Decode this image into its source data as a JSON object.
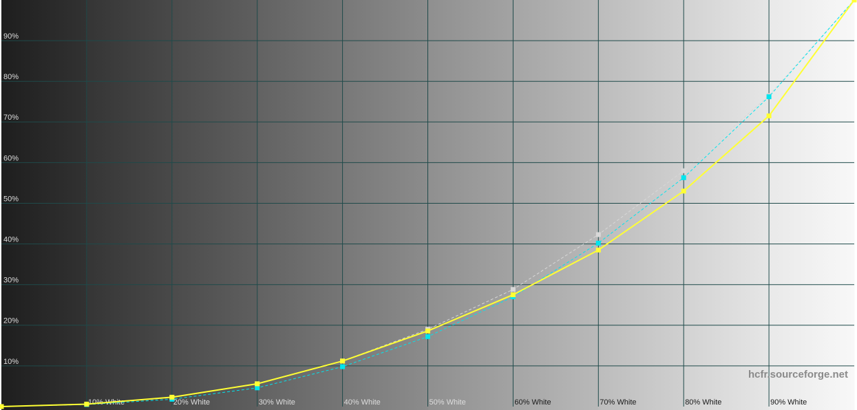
{
  "chart_data": {
    "type": "line",
    "x": [
      0,
      10,
      20,
      30,
      40,
      50,
      60,
      70,
      80,
      90,
      100
    ],
    "series": [
      {
        "color": "#d8d8d8",
        "dashed": true,
        "values": [
          0,
          0.6,
          2.2,
          5.6,
          11.2,
          19.0,
          28.8,
          42.3,
          58.0,
          76.5,
          100
        ]
      },
      {
        "color": "#00e5ee",
        "dashed": true,
        "values": [
          0,
          0.5,
          1.8,
          4.6,
          9.8,
          17.2,
          27.0,
          40.2,
          56.3,
          76.2,
          100
        ]
      },
      {
        "color": "#ffff33",
        "dashed": false,
        "values": [
          0,
          0.6,
          2.3,
          5.6,
          11.2,
          18.6,
          27.5,
          38.5,
          53.0,
          71.5,
          100
        ]
      }
    ],
    "xlim": [
      0,
      100
    ],
    "ylim": [
      0,
      100
    ],
    "xticks": [
      {
        "value": 10,
        "label": "10% White"
      },
      {
        "value": 20,
        "label": "20% White"
      },
      {
        "value": 30,
        "label": "30% White"
      },
      {
        "value": 40,
        "label": "40% White"
      },
      {
        "value": 50,
        "label": "50% White"
      },
      {
        "value": 60,
        "label": "60% White"
      },
      {
        "value": 70,
        "label": "70% White"
      },
      {
        "value": 80,
        "label": "80% White"
      },
      {
        "value": 90,
        "label": "90% White"
      }
    ],
    "yticks": [
      {
        "value": 10,
        "label": "10%"
      },
      {
        "value": 20,
        "label": "20%"
      },
      {
        "value": 30,
        "label": "30%"
      },
      {
        "value": 40,
        "label": "40%"
      },
      {
        "value": 50,
        "label": "50%"
      },
      {
        "value": 60,
        "label": "60%"
      },
      {
        "value": 70,
        "label": "70%"
      },
      {
        "value": 80,
        "label": "80%"
      },
      {
        "value": 90,
        "label": "90%"
      }
    ],
    "grid": true,
    "annotation": "hcfr.sourceforge.net"
  }
}
